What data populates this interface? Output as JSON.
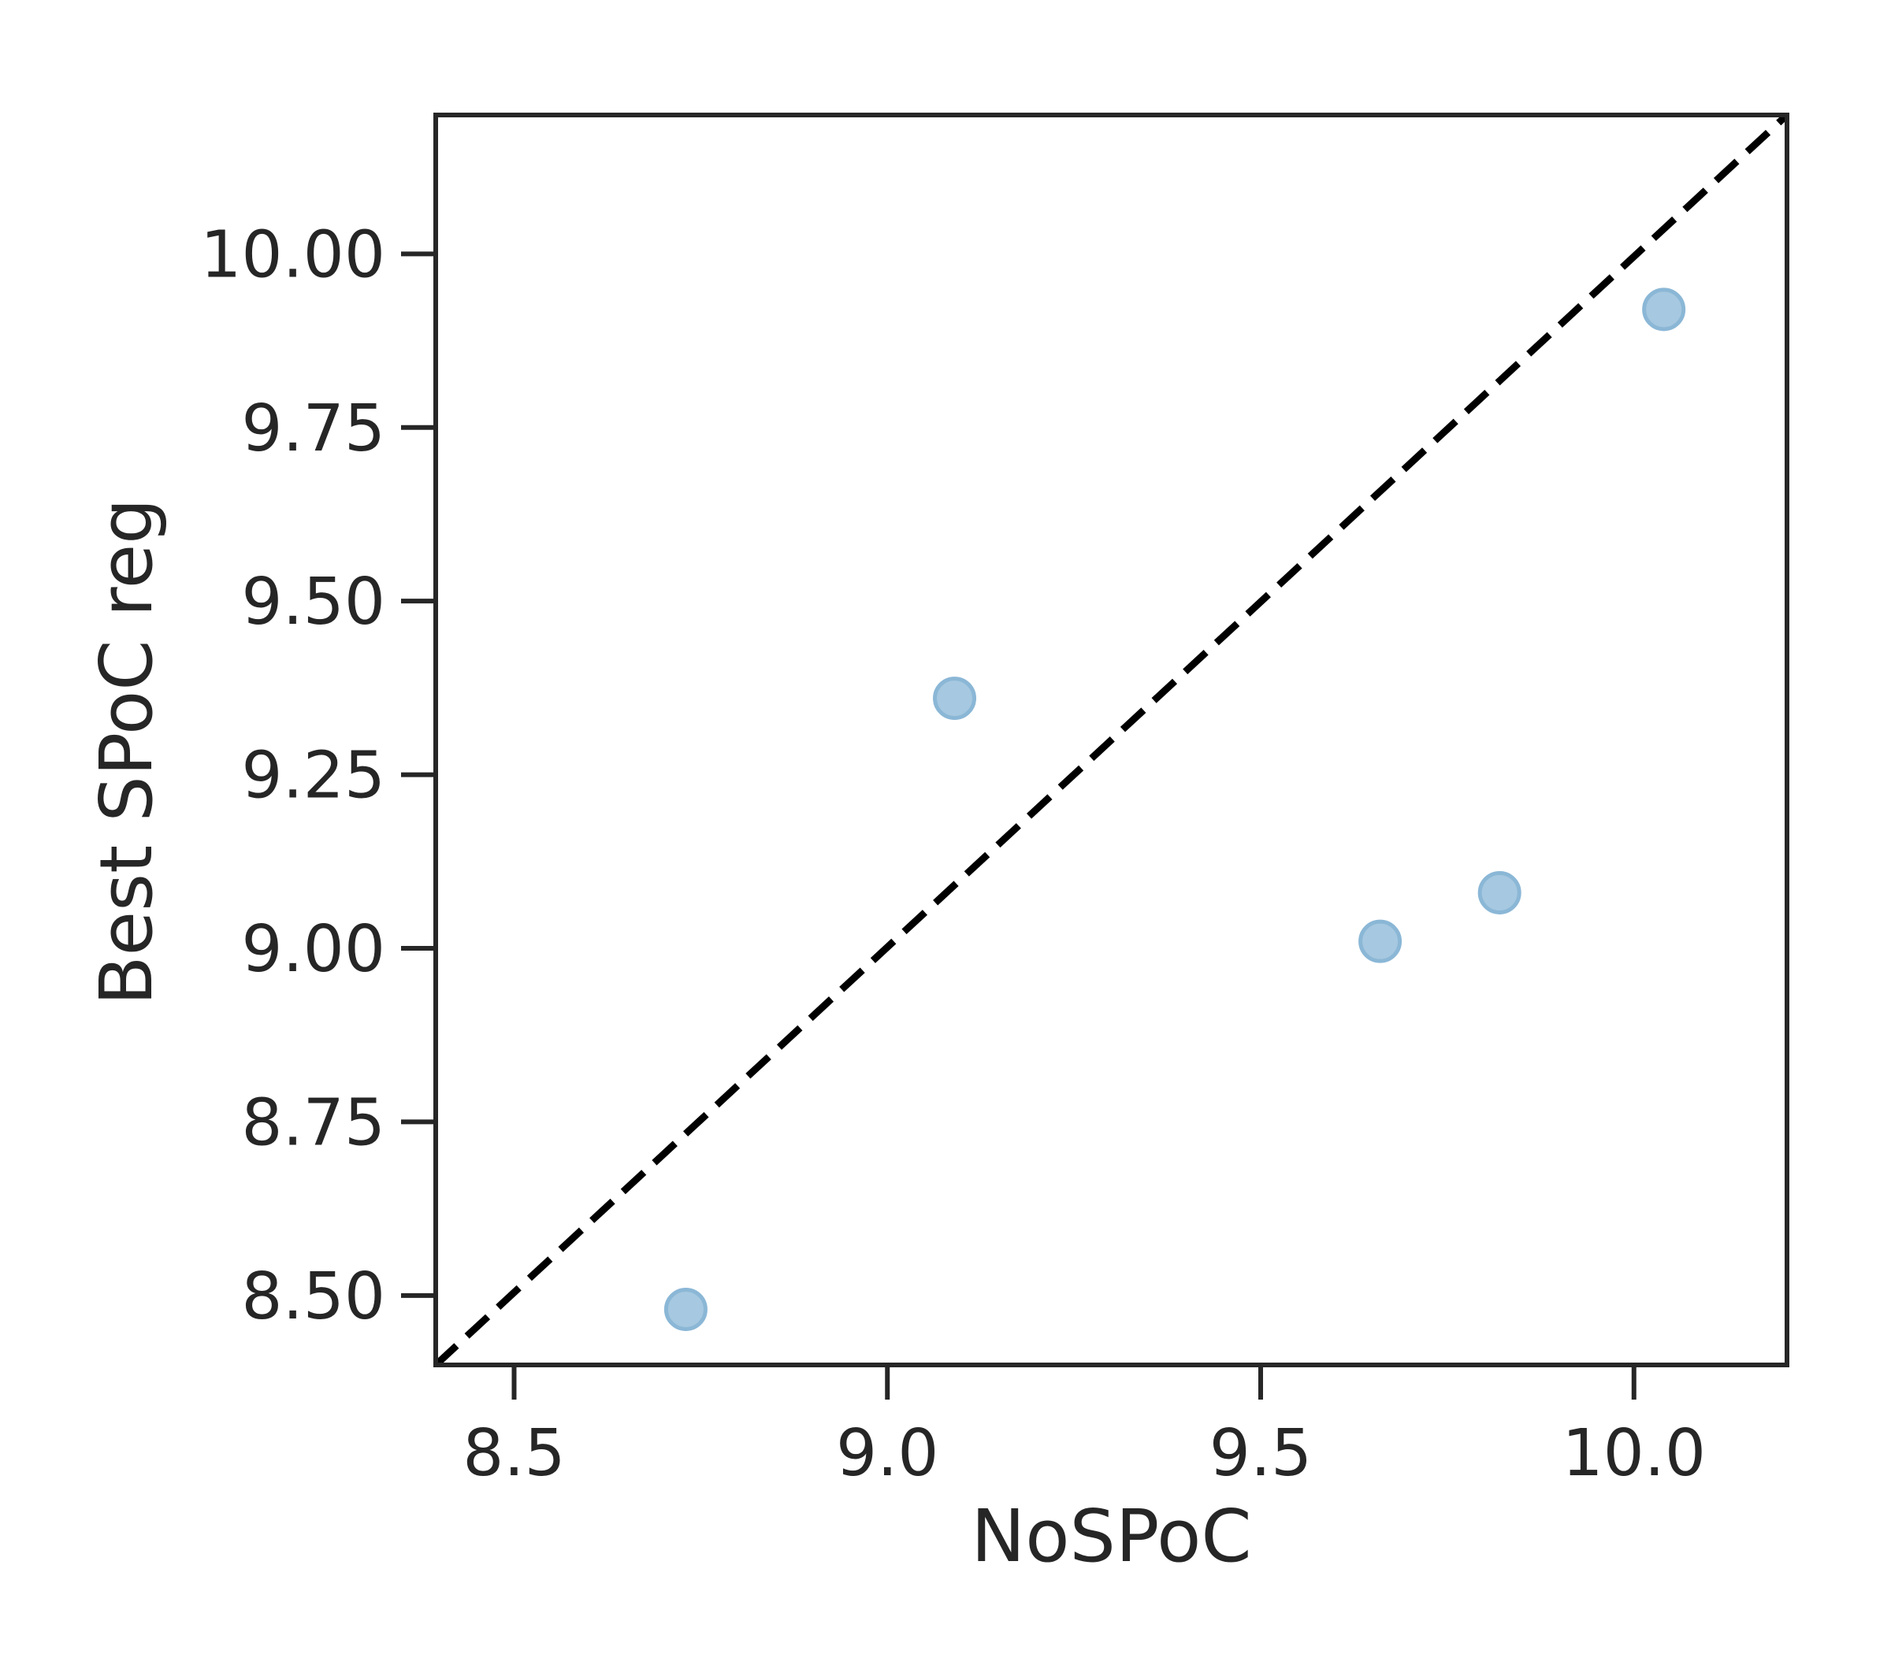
{
  "chart_data": {
    "type": "scatter",
    "title": "",
    "xlabel": "NoSPoC",
    "ylabel": "Best SPoC reg",
    "xlim": [
      8.395,
      10.205
    ],
    "ylim": [
      8.4,
      10.2
    ],
    "x_ticks": [
      {
        "value": 8.5,
        "label": "8.5"
      },
      {
        "value": 9.0,
        "label": "9.0"
      },
      {
        "value": 9.5,
        "label": "9.5"
      },
      {
        "value": 10.0,
        "label": "10.0"
      }
    ],
    "y_ticks": [
      {
        "value": 8.5,
        "label": "8.50"
      },
      {
        "value": 8.75,
        "label": "8.75"
      },
      {
        "value": 9.0,
        "label": "9.00"
      },
      {
        "value": 9.25,
        "label": "9.25"
      },
      {
        "value": 9.5,
        "label": "9.50"
      },
      {
        "value": 9.75,
        "label": "9.75"
      },
      {
        "value": 10.0,
        "label": "10.00"
      }
    ],
    "points": [
      {
        "x": 8.73,
        "y": 8.48
      },
      {
        "x": 9.09,
        "y": 9.36
      },
      {
        "x": 9.66,
        "y": 9.01
      },
      {
        "x": 9.82,
        "y": 9.08
      },
      {
        "x": 10.04,
        "y": 9.92
      }
    ],
    "reference_line": {
      "style": "dashed",
      "from": [
        8.395,
        8.4
      ],
      "to": [
        10.205,
        10.2
      ]
    },
    "grid": false,
    "colors": {
      "point_fill": "#a6c8e0",
      "point_stroke": "#8bb7d6",
      "axis": "#262626",
      "reference_line": "#000000"
    }
  }
}
